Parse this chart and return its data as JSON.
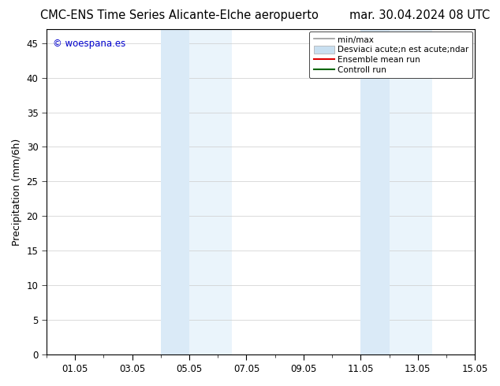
{
  "title_left": "CMC-ENS Time Series Alicante-Elche aeropuerto",
  "title_right": "mar. 30.04.2024 08 UTC",
  "ylabel": "Precipitation (mm/6h)",
  "watermark": "© woespana.es",
  "watermark_color": "#0000cc",
  "background_color": "#ffffff",
  "plot_bg_color": "#ffffff",
  "ylim": [
    0,
    47
  ],
  "yticks": [
    0,
    5,
    10,
    15,
    20,
    25,
    30,
    35,
    40,
    45
  ],
  "xmin": 0,
  "xmax": 15,
  "xtick_labels": [
    "01.05",
    "03.05",
    "05.05",
    "07.05",
    "09.05",
    "11.05",
    "13.05",
    "15.05"
  ],
  "xtick_positions": [
    1,
    3,
    5,
    7,
    9,
    11,
    13,
    15
  ],
  "shaded_dark": [
    {
      "xmin": 4.0,
      "xmax": 5.0,
      "color": "#daeaf7"
    },
    {
      "xmin": 11.0,
      "xmax": 12.0,
      "color": "#daeaf7"
    }
  ],
  "shaded_light": [
    {
      "xmin": 5.0,
      "xmax": 6.5,
      "color": "#eaf4fb"
    },
    {
      "xmin": 12.0,
      "xmax": 13.5,
      "color": "#eaf4fb"
    }
  ],
  "legend_entries": [
    {
      "label": "min/max",
      "color": "#999999",
      "lw": 1.2,
      "style": "line"
    },
    {
      "label": "Desviaci acute;n est acute;ndar",
      "color": "#c8dff0",
      "style": "band"
    },
    {
      "label": "Ensemble mean run",
      "color": "#dd0000",
      "lw": 1.5,
      "style": "line"
    },
    {
      "label": "Controll run",
      "color": "#006600",
      "lw": 1.5,
      "style": "line"
    }
  ],
  "title_fontsize": 10.5,
  "tick_fontsize": 8.5,
  "ylabel_fontsize": 9,
  "legend_fontsize": 7.5,
  "grid_color": "#cccccc",
  "grid_lw": 0.5
}
